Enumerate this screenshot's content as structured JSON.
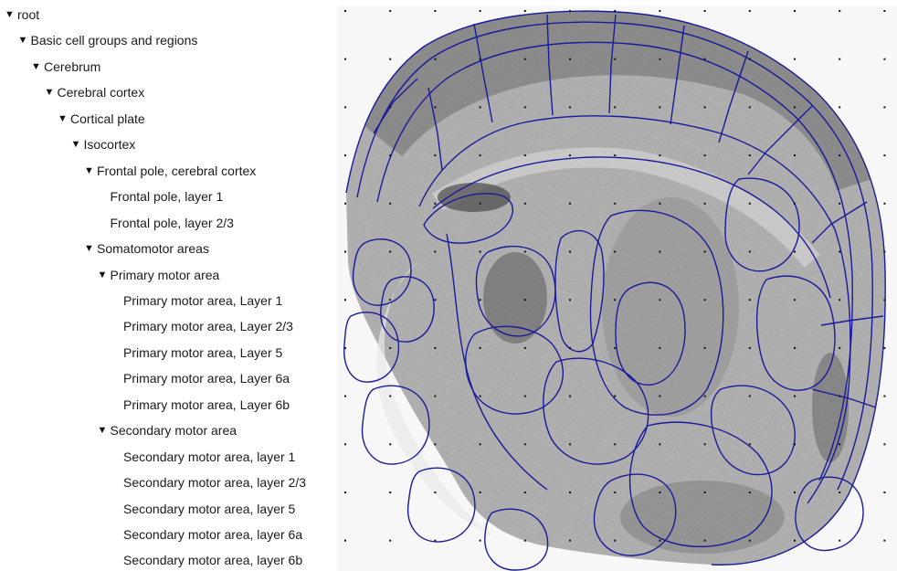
{
  "tree": {
    "items": [
      {
        "label": "root",
        "depth": 0,
        "expanded": true
      },
      {
        "label": "Basic cell groups and regions",
        "depth": 1,
        "expanded": true
      },
      {
        "label": "Cerebrum",
        "depth": 2,
        "expanded": true
      },
      {
        "label": "Cerebral cortex",
        "depth": 3,
        "expanded": true
      },
      {
        "label": "Cortical plate",
        "depth": 4,
        "expanded": true
      },
      {
        "label": "Isocortex",
        "depth": 5,
        "expanded": true
      },
      {
        "label": "Frontal pole, cerebral cortex",
        "depth": 6,
        "expanded": true
      },
      {
        "label": "Frontal pole, layer 1",
        "depth": 7,
        "expanded": false
      },
      {
        "label": "Frontal pole, layer 2/3",
        "depth": 7,
        "expanded": false
      },
      {
        "label": "Somatomotor areas",
        "depth": 6,
        "expanded": true
      },
      {
        "label": "Primary motor area",
        "depth": 7,
        "expanded": true
      },
      {
        "label": "Primary motor area, Layer 1",
        "depth": 8,
        "expanded": false
      },
      {
        "label": "Primary motor area, Layer 2/3",
        "depth": 8,
        "expanded": false
      },
      {
        "label": "Primary motor area, Layer 5",
        "depth": 8,
        "expanded": false
      },
      {
        "label": "Primary motor area, Layer 6a",
        "depth": 8,
        "expanded": false
      },
      {
        "label": "Primary motor area, Layer 6b",
        "depth": 8,
        "expanded": false
      },
      {
        "label": "Secondary motor area",
        "depth": 7,
        "expanded": true
      },
      {
        "label": "Secondary motor area, layer 1",
        "depth": 8,
        "expanded": false
      },
      {
        "label": "Secondary motor area, layer 2/3",
        "depth": 8,
        "expanded": false
      },
      {
        "label": "Secondary motor area, layer 5",
        "depth": 8,
        "expanded": false
      },
      {
        "label": "Secondary motor area, layer 6a",
        "depth": 8,
        "expanded": false
      },
      {
        "label": "Secondary motor area, layer 6b",
        "depth": 8,
        "expanded": false
      }
    ],
    "expand_glyph": "▼"
  },
  "viewer": {
    "outline_color": "#1a1a9a",
    "tissue_color": "#9a9a9a",
    "grid_dot_color": "#111111"
  }
}
